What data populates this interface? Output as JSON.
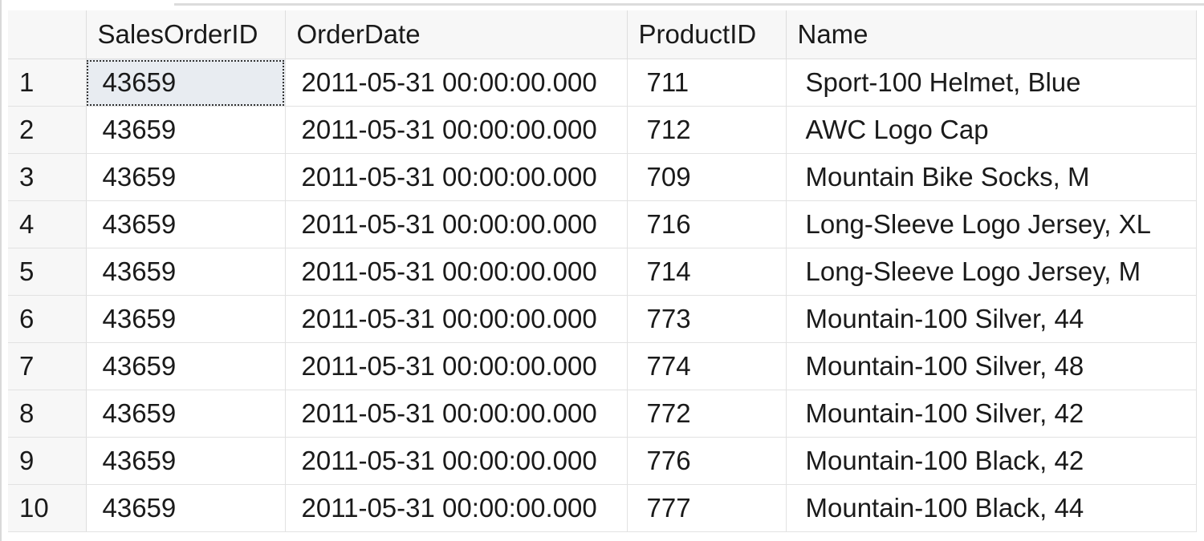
{
  "grid": {
    "columns": [
      "",
      "SalesOrderID",
      "OrderDate",
      "ProductID",
      "Name"
    ],
    "rows": [
      {
        "num": "1",
        "sales_order_id": "43659",
        "order_date": "2011-05-31 00:00:00.000",
        "product_id": "711",
        "name": "Sport-100 Helmet, Blue"
      },
      {
        "num": "2",
        "sales_order_id": "43659",
        "order_date": "2011-05-31 00:00:00.000",
        "product_id": "712",
        "name": "AWC Logo Cap"
      },
      {
        "num": "3",
        "sales_order_id": "43659",
        "order_date": "2011-05-31 00:00:00.000",
        "product_id": "709",
        "name": "Mountain Bike Socks, M"
      },
      {
        "num": "4",
        "sales_order_id": "43659",
        "order_date": "2011-05-31 00:00:00.000",
        "product_id": "716",
        "name": "Long-Sleeve Logo Jersey, XL"
      },
      {
        "num": "5",
        "sales_order_id": "43659",
        "order_date": "2011-05-31 00:00:00.000",
        "product_id": "714",
        "name": "Long-Sleeve Logo Jersey, M"
      },
      {
        "num": "6",
        "sales_order_id": "43659",
        "order_date": "2011-05-31 00:00:00.000",
        "product_id": "773",
        "name": "Mountain-100 Silver, 44"
      },
      {
        "num": "7",
        "sales_order_id": "43659",
        "order_date": "2011-05-31 00:00:00.000",
        "product_id": "774",
        "name": "Mountain-100 Silver, 48"
      },
      {
        "num": "8",
        "sales_order_id": "43659",
        "order_date": "2011-05-31 00:00:00.000",
        "product_id": "772",
        "name": "Mountain-100 Silver, 42"
      },
      {
        "num": "9",
        "sales_order_id": "43659",
        "order_date": "2011-05-31 00:00:00.000",
        "product_id": "776",
        "name": "Mountain-100 Black, 42"
      },
      {
        "num": "10",
        "sales_order_id": "43659",
        "order_date": "2011-05-31 00:00:00.000",
        "product_id": "777",
        "name": "Mountain-100 Black, 44"
      }
    ]
  },
  "colors": {
    "header_bg": "#f7f7f7",
    "active_cell_bg": "#e8ecf1",
    "grid_line": "#e2e2e2"
  }
}
